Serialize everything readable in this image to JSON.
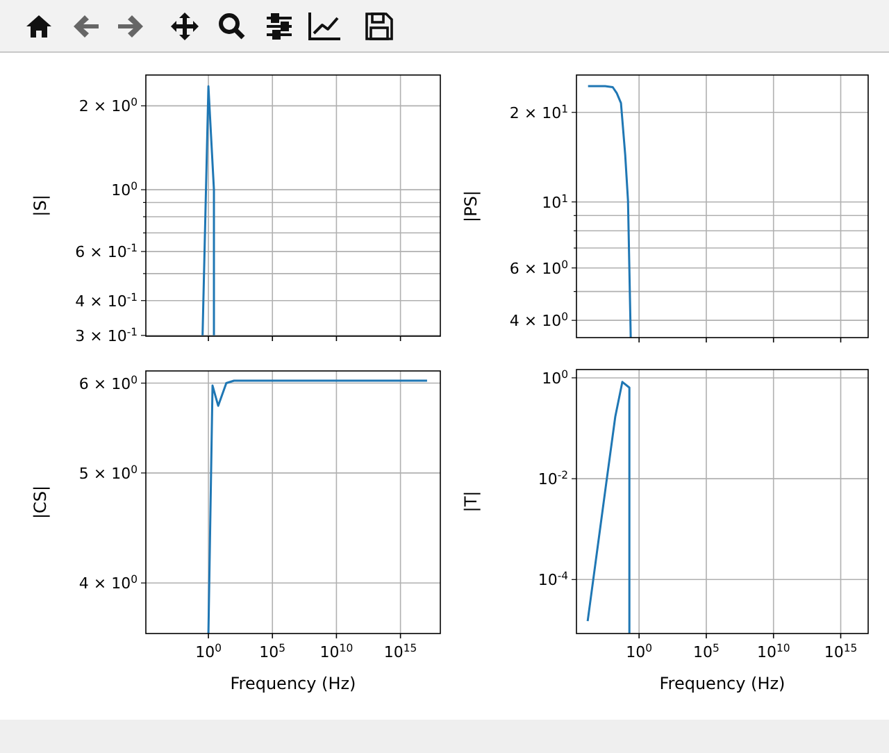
{
  "chart_data": [
    {
      "type": "line",
      "ylabel": "|S|",
      "log": "xy",
      "grid": true,
      "tick_labels": "y",
      "xlim": [
        1.3e-05,
        1.3e+18
      ],
      "ylim": [
        0.298,
        2.58
      ],
      "xticks": [
        {
          "value": 1,
          "label": null
        },
        {
          "value": 100000.0,
          "label": null
        },
        {
          "value": 10000000000.0,
          "label": null
        },
        {
          "value": 1000000000000000.0,
          "label": null
        }
      ],
      "yticks": [
        {
          "value": 0.3,
          "label": "3 × 10$^{-1}$"
        },
        {
          "value": 0.4,
          "label": "4 × 10$^{-1}$"
        },
        {
          "value": 0.5,
          "label": null
        },
        {
          "value": 0.6,
          "label": "6 × 10$^{-1}$"
        },
        {
          "value": 0.7,
          "label": null
        },
        {
          "value": 0.8,
          "label": null
        },
        {
          "value": 0.9,
          "label": null
        },
        {
          "value": 1,
          "label": "10$^{0}$"
        },
        {
          "value": 2,
          "label": "2 × 10$^{0}$"
        }
      ],
      "series": [
        {
          "color": "#1f77b4",
          "x": [
            0.35,
            1,
            2.7,
            2.7
          ],
          "values": [
            0.3,
            2.35,
            1.0,
            0.3
          ]
        }
      ]
    },
    {
      "type": "line",
      "ylabel": "|PS|",
      "log": "xy",
      "grid": true,
      "tick_labels": "y",
      "xlim": [
        2.2e-05,
        1.1e+17
      ],
      "ylim": [
        3.5,
        26.7
      ],
      "xticks": [
        {
          "value": 1,
          "label": null
        },
        {
          "value": 100000.0,
          "label": null
        },
        {
          "value": 10000000000.0,
          "label": null
        },
        {
          "value": 1000000000000000.0,
          "label": null
        }
      ],
      "yticks": [
        {
          "value": 4,
          "label": "4 × 10$^{0}$"
        },
        {
          "value": 5,
          "label": null
        },
        {
          "value": 6,
          "label": "6 × 10$^{0}$"
        },
        {
          "value": 7,
          "label": null
        },
        {
          "value": 8,
          "label": null
        },
        {
          "value": 9,
          "label": null
        },
        {
          "value": 10,
          "label": "10$^{1}$"
        },
        {
          "value": 20,
          "label": "2 × 10$^{1}$"
        }
      ],
      "series": [
        {
          "color": "#1f77b4",
          "x": [
            0.00016,
            0.003,
            0.011,
            0.022,
            0.045,
            0.093,
            0.15,
            0.24
          ],
          "values": [
            24.5,
            24.5,
            24.3,
            23.2,
            21.5,
            14.4,
            10.1,
            3.5
          ]
        }
      ]
    },
    {
      "type": "line",
      "ylabel": "|CS|",
      "xlabel": "Frequency (Hz)",
      "log": "xy",
      "grid": true,
      "xlim": [
        1.3e-05,
        1.3e+18
      ],
      "ylim": [
        3.61,
        6.15
      ],
      "xticks": [
        {
          "value": 1,
          "label": "10$^{0}$"
        },
        {
          "value": 100000.0,
          "label": "10$^{5}$"
        },
        {
          "value": 10000000000.0,
          "label": "10$^{10}$"
        },
        {
          "value": 1000000000000000.0,
          "label": "10$^{15}$"
        }
      ],
      "yticks": [
        {
          "value": 4,
          "label": "4 × 10$^{0}$"
        },
        {
          "value": 5,
          "label": "5 × 10$^{0}$"
        },
        {
          "value": 6,
          "label": "6 × 10$^{0}$"
        }
      ],
      "series": [
        {
          "color": "#1f77b4",
          "x": [
            1,
            2.1,
            5.8,
            25,
            100,
            1.2e+17
          ],
          "values": [
            3.61,
            5.97,
            5.73,
            6.0,
            6.03,
            6.03
          ]
        }
      ]
    },
    {
      "type": "line",
      "ylabel": "|T|",
      "xlabel": "Frequency (Hz)",
      "log": "xy",
      "grid": true,
      "xlim": [
        2.2e-05,
        1.1e+17
      ],
      "ylim": [
        8.5e-06,
        1.46
      ],
      "xticks": [
        {
          "value": 1,
          "label": "10$^{0}$"
        },
        {
          "value": 100000.0,
          "label": "10$^{5}$"
        },
        {
          "value": 10000000000.0,
          "label": "10$^{10}$"
        },
        {
          "value": 1000000000000000.0,
          "label": "10$^{15}$"
        }
      ],
      "yticks": [
        {
          "value": 0.0001,
          "label": "10$^{-4}$"
        },
        {
          "value": 0.01,
          "label": "10$^{-2}$"
        },
        {
          "value": 1,
          "label": "10$^{0}$"
        }
      ],
      "series": [
        {
          "color": "#1f77b4",
          "x": [
            0.00015,
            0.0042,
            0.017,
            0.057,
            0.19,
            0.19
          ],
          "values": [
            1.5e-05,
            0.011,
            0.17,
            0.83,
            0.64,
            8.6e-06
          ]
        }
      ]
    }
  ]
}
